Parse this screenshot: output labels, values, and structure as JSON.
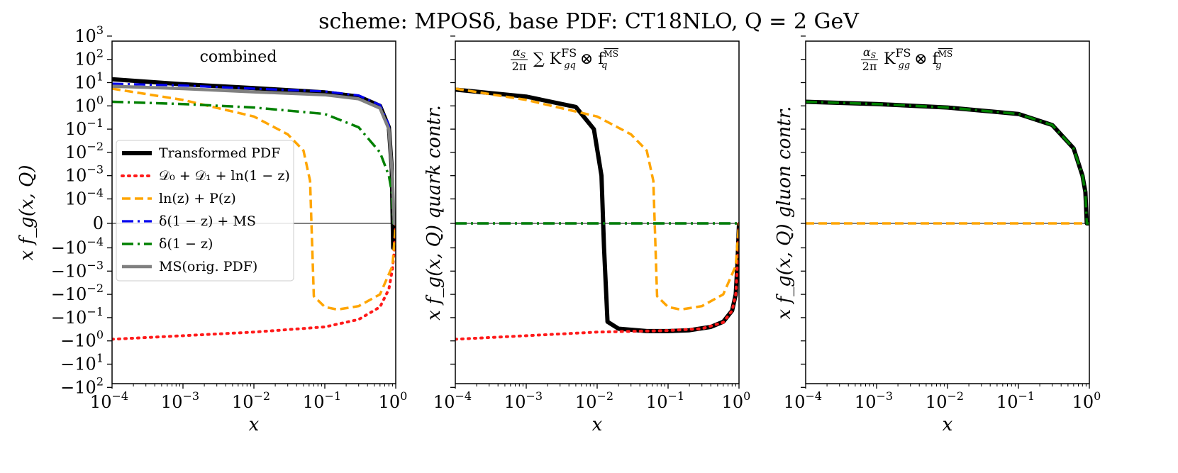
{
  "chart_data": {
    "type": "line",
    "title": "scheme: MPOSδ, base PDF: CT18NLO, Q = 2 GeV",
    "xscale": "log",
    "yscale": "symlog",
    "xlim": [
      0.0001,
      1.0
    ],
    "ylim": [
      -100,
      1000
    ],
    "xlabel": "x",
    "xticks": [
      "10",
      "10",
      "10",
      "10",
      "10"
    ],
    "xtick_exponents": [
      "−4",
      "−3",
      "−2",
      "−1",
      "0"
    ],
    "yticks_left": [
      "10",
      "10",
      "10",
      "10",
      "10",
      "10",
      "10",
      "0",
      "−10",
      "−10",
      "−10",
      "−10",
      "−10",
      "−10",
      "−10"
    ],
    "ytick_exponents_left": [
      "3",
      "2",
      "1",
      "0",
      "−1",
      "−2",
      "−3",
      "",
      "−4",
      "−3",
      "−2",
      "−1",
      "0",
      "1",
      "2"
    ],
    "ytick_zero_label": "0",
    "ytick_pos_last": "−4",
    "legend": {
      "placement": "center-left",
      "entries": [
        "Transformed PDF",
        "𝒟₀ + 𝒟₁ + ln(1 − z)",
        "ln(z) + P(z)",
        "δ(1 − z) + MS",
        "δ(1 − z)",
        "MS(orig. PDF)"
      ]
    },
    "panels": [
      {
        "name": "combined",
        "ylabel": "x f_g(x, Q)",
        "annotation": "combined",
        "series": [
          {
            "name": "Transformed PDF",
            "color": "#000000",
            "style": "solid",
            "x": [
              0.0001,
              0.001,
              0.01,
              0.1,
              0.3,
              0.6,
              0.8,
              0.88,
              0.92,
              0.95,
              1.0
            ],
            "y": [
              14,
              8.5,
              5.8,
              3.8,
              2.5,
              1.0,
              0.12,
              0.002,
              -0.0001,
              0,
              0
            ]
          },
          {
            "name": "𝒟₀ + 𝒟₁ + ln(1 − z)",
            "color": "#ff1a1a",
            "style": "dotted",
            "x": [
              0.0001,
              0.001,
              0.01,
              0.1,
              0.3,
              0.6,
              0.8,
              0.9,
              0.95,
              1.0
            ],
            "y": [
              -0.85,
              -0.6,
              -0.42,
              -0.25,
              -0.12,
              -0.035,
              -0.006,
              -0.0008,
              -0.00015,
              0
            ]
          },
          {
            "name": "ln(z) + P(z)",
            "color": "#ffa500",
            "style": "dashed",
            "x": [
              0.0001,
              0.001,
              0.01,
              0.03,
              0.05,
              0.062,
              0.07,
              0.1,
              0.15,
              0.3,
              0.6,
              0.9,
              1.0
            ],
            "y": [
              5.5,
              1.8,
              0.35,
              0.06,
              0.012,
              0.0006,
              -0.012,
              -0.035,
              -0.045,
              -0.032,
              -0.01,
              -0.0006,
              0
            ]
          },
          {
            "name": "δ(1 − z) + MS",
            "color": "#0000ee",
            "style": "dashdot",
            "x": [
              0.0001,
              0.001,
              0.01,
              0.1,
              0.3,
              0.6,
              0.8,
              0.9,
              0.95,
              1.0
            ],
            "y": [
              9,
              7.5,
              5.5,
              4.2,
              2.8,
              1.1,
              0.15,
              0.0008,
              0,
              0
            ]
          },
          {
            "name": "δ(1 − z)",
            "color": "#008000",
            "style": "dashdot",
            "x": [
              0.0001,
              0.001,
              0.01,
              0.1,
              0.3,
              0.6,
              0.8,
              0.88,
              0.93,
              1.0
            ],
            "y": [
              1.5,
              1.2,
              0.85,
              0.45,
              0.12,
              0.01,
              0.001,
              0.0002,
              0,
              0
            ]
          },
          {
            "name": "MS(orig. PDF)",
            "color": "#808080",
            "style": "solid",
            "x": [
              0.0001,
              0.001,
              0.01,
              0.1,
              0.3,
              0.6,
              0.8,
              0.9,
              0.95,
              1.0
            ],
            "y": [
              7,
              5.5,
              4.0,
              3.0,
              2.0,
              0.8,
              0.1,
              0.0008,
              0,
              0
            ]
          }
        ]
      },
      {
        "name": "quark",
        "ylabel": "x f_g(x, Q)  quark contr.",
        "annotation_lead": "α",
        "annotation_lead_sub": "S",
        "annotation_den": "2π",
        "annotation_body": "∑ K",
        "annotation_sup": "FS",
        "annotation_sub": "gq",
        "annotation_tail": "⊗ f",
        "annotation_tail_sup": "MS",
        "annotation_tail_sub": "q",
        "series": [
          {
            "name": "Transformed PDF",
            "color": "#000000",
            "style": "solid",
            "x": [
              0.0001,
              0.001,
              0.005,
              0.009,
              0.0115,
              0.0125,
              0.014,
              0.02,
              0.05,
              0.1,
              0.2,
              0.4,
              0.6,
              0.8,
              0.9,
              0.95,
              1.0
            ],
            "y": [
              5,
              2.5,
              0.9,
              0.1,
              0.001,
              -0.0001,
              -0.15,
              -0.3,
              -0.38,
              -0.38,
              -0.35,
              -0.25,
              -0.15,
              -0.05,
              -0.01,
              -0.0005,
              0
            ]
          },
          {
            "name": "𝒟₀ + 𝒟₁ + ln(1 − z)",
            "color": "#ff1a1a",
            "style": "dotted",
            "x": [
              0.0001,
              0.001,
              0.01,
              0.1,
              0.3,
              0.6,
              0.8,
              0.9,
              0.95,
              1.0
            ],
            "y": [
              -0.85,
              -0.6,
              -0.42,
              -0.36,
              -0.3,
              -0.16,
              -0.05,
              -0.01,
              -0.0005,
              0
            ]
          },
          {
            "name": "ln(z) + P(z)",
            "color": "#ffa500",
            "style": "dashed",
            "x": [
              0.0001,
              0.001,
              0.01,
              0.03,
              0.05,
              0.062,
              0.07,
              0.1,
              0.15,
              0.3,
              0.6,
              0.9,
              1.0
            ],
            "y": [
              5.5,
              1.8,
              0.35,
              0.06,
              0.012,
              0.0006,
              -0.012,
              -0.035,
              -0.045,
              -0.032,
              -0.01,
              -0.0006,
              0
            ]
          },
          {
            "name": "δ(1 − z) + MS",
            "color": "#0000ee",
            "style": "dashdot",
            "x": [
              0.0001,
              1.0
            ],
            "y": [
              0,
              0
            ]
          },
          {
            "name": "δ(1 − z)",
            "color": "#008000",
            "style": "dashdot",
            "x": [
              0.0001,
              1.0
            ],
            "y": [
              0,
              0
            ]
          }
        ]
      },
      {
        "name": "gluon",
        "ylabel": "x f_g(x, Q)  gluon contr.",
        "annotation_lead": "α",
        "annotation_lead_sub": "S",
        "annotation_den": "2π",
        "annotation_body": "K",
        "annotation_sup": "FS",
        "annotation_sub": "gg",
        "annotation_tail": "⊗ f",
        "annotation_tail_sup": "MS",
        "annotation_tail_sub": "g",
        "series": [
          {
            "name": "ln(z) + P(z)",
            "color": "#ffa500",
            "style": "dashed",
            "x": [
              0.0001,
              1.0
            ],
            "y": [
              0,
              0
            ]
          },
          {
            "name": "Transformed PDF",
            "color": "#000000",
            "style": "solid",
            "x": [
              0.0001,
              0.001,
              0.01,
              0.1,
              0.3,
              0.6,
              0.8,
              0.88,
              0.92,
              1.0
            ],
            "y": [
              1.5,
              1.2,
              0.85,
              0.45,
              0.15,
              0.015,
              0.001,
              0.0002,
              0,
              0
            ]
          },
          {
            "name": "δ(1 − z)",
            "color": "#008000",
            "style": "dashdot",
            "x": [
              0.0001,
              0.001,
              0.01,
              0.1,
              0.3,
              0.6,
              0.8,
              0.88,
              0.92,
              1.0
            ],
            "y": [
              1.5,
              1.2,
              0.85,
              0.45,
              0.15,
              0.015,
              0.001,
              0.0002,
              0,
              0
            ]
          }
        ]
      }
    ]
  }
}
